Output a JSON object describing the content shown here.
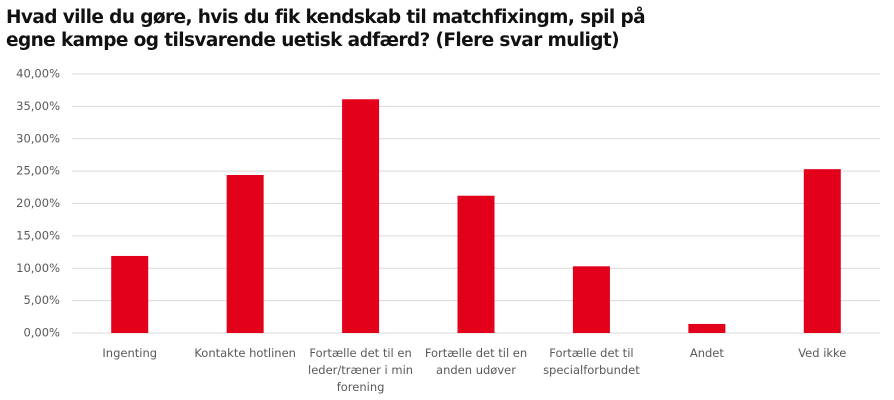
{
  "chart_data": {
    "type": "bar",
    "title": "Hvad ville du gøre, hvis du fik kendskab til matchfixingm, spil på egne kampe og tilsvarende uetisk adfærd? (Flere svar muligt)",
    "categories": [
      "Ingenting",
      "Kontakte hotlinen",
      "Fortælle det til en leder/træner i min forening",
      "Fortælle det til en anden udøver",
      "Fortælle det til specialforbundet",
      "Andet",
      "Ved ikke"
    ],
    "values": [
      11.9,
      24.4,
      36.1,
      21.2,
      10.3,
      1.4,
      25.3
    ],
    "color": "#e2001a",
    "ylim": [
      0,
      40
    ],
    "yticks": [
      {
        "value": 0,
        "label": "0,00%"
      },
      {
        "value": 5,
        "label": "5,00%"
      },
      {
        "value": 10,
        "label": "10,00%"
      },
      {
        "value": 15,
        "label": "15,00%"
      },
      {
        "value": 20,
        "label": "20,00%"
      },
      {
        "value": 25,
        "label": "25,00%"
      },
      {
        "value": 30,
        "label": "30,00%"
      },
      {
        "value": 35,
        "label": "35,00%"
      },
      {
        "value": 40,
        "label": "40,00%"
      }
    ],
    "grid": true
  }
}
